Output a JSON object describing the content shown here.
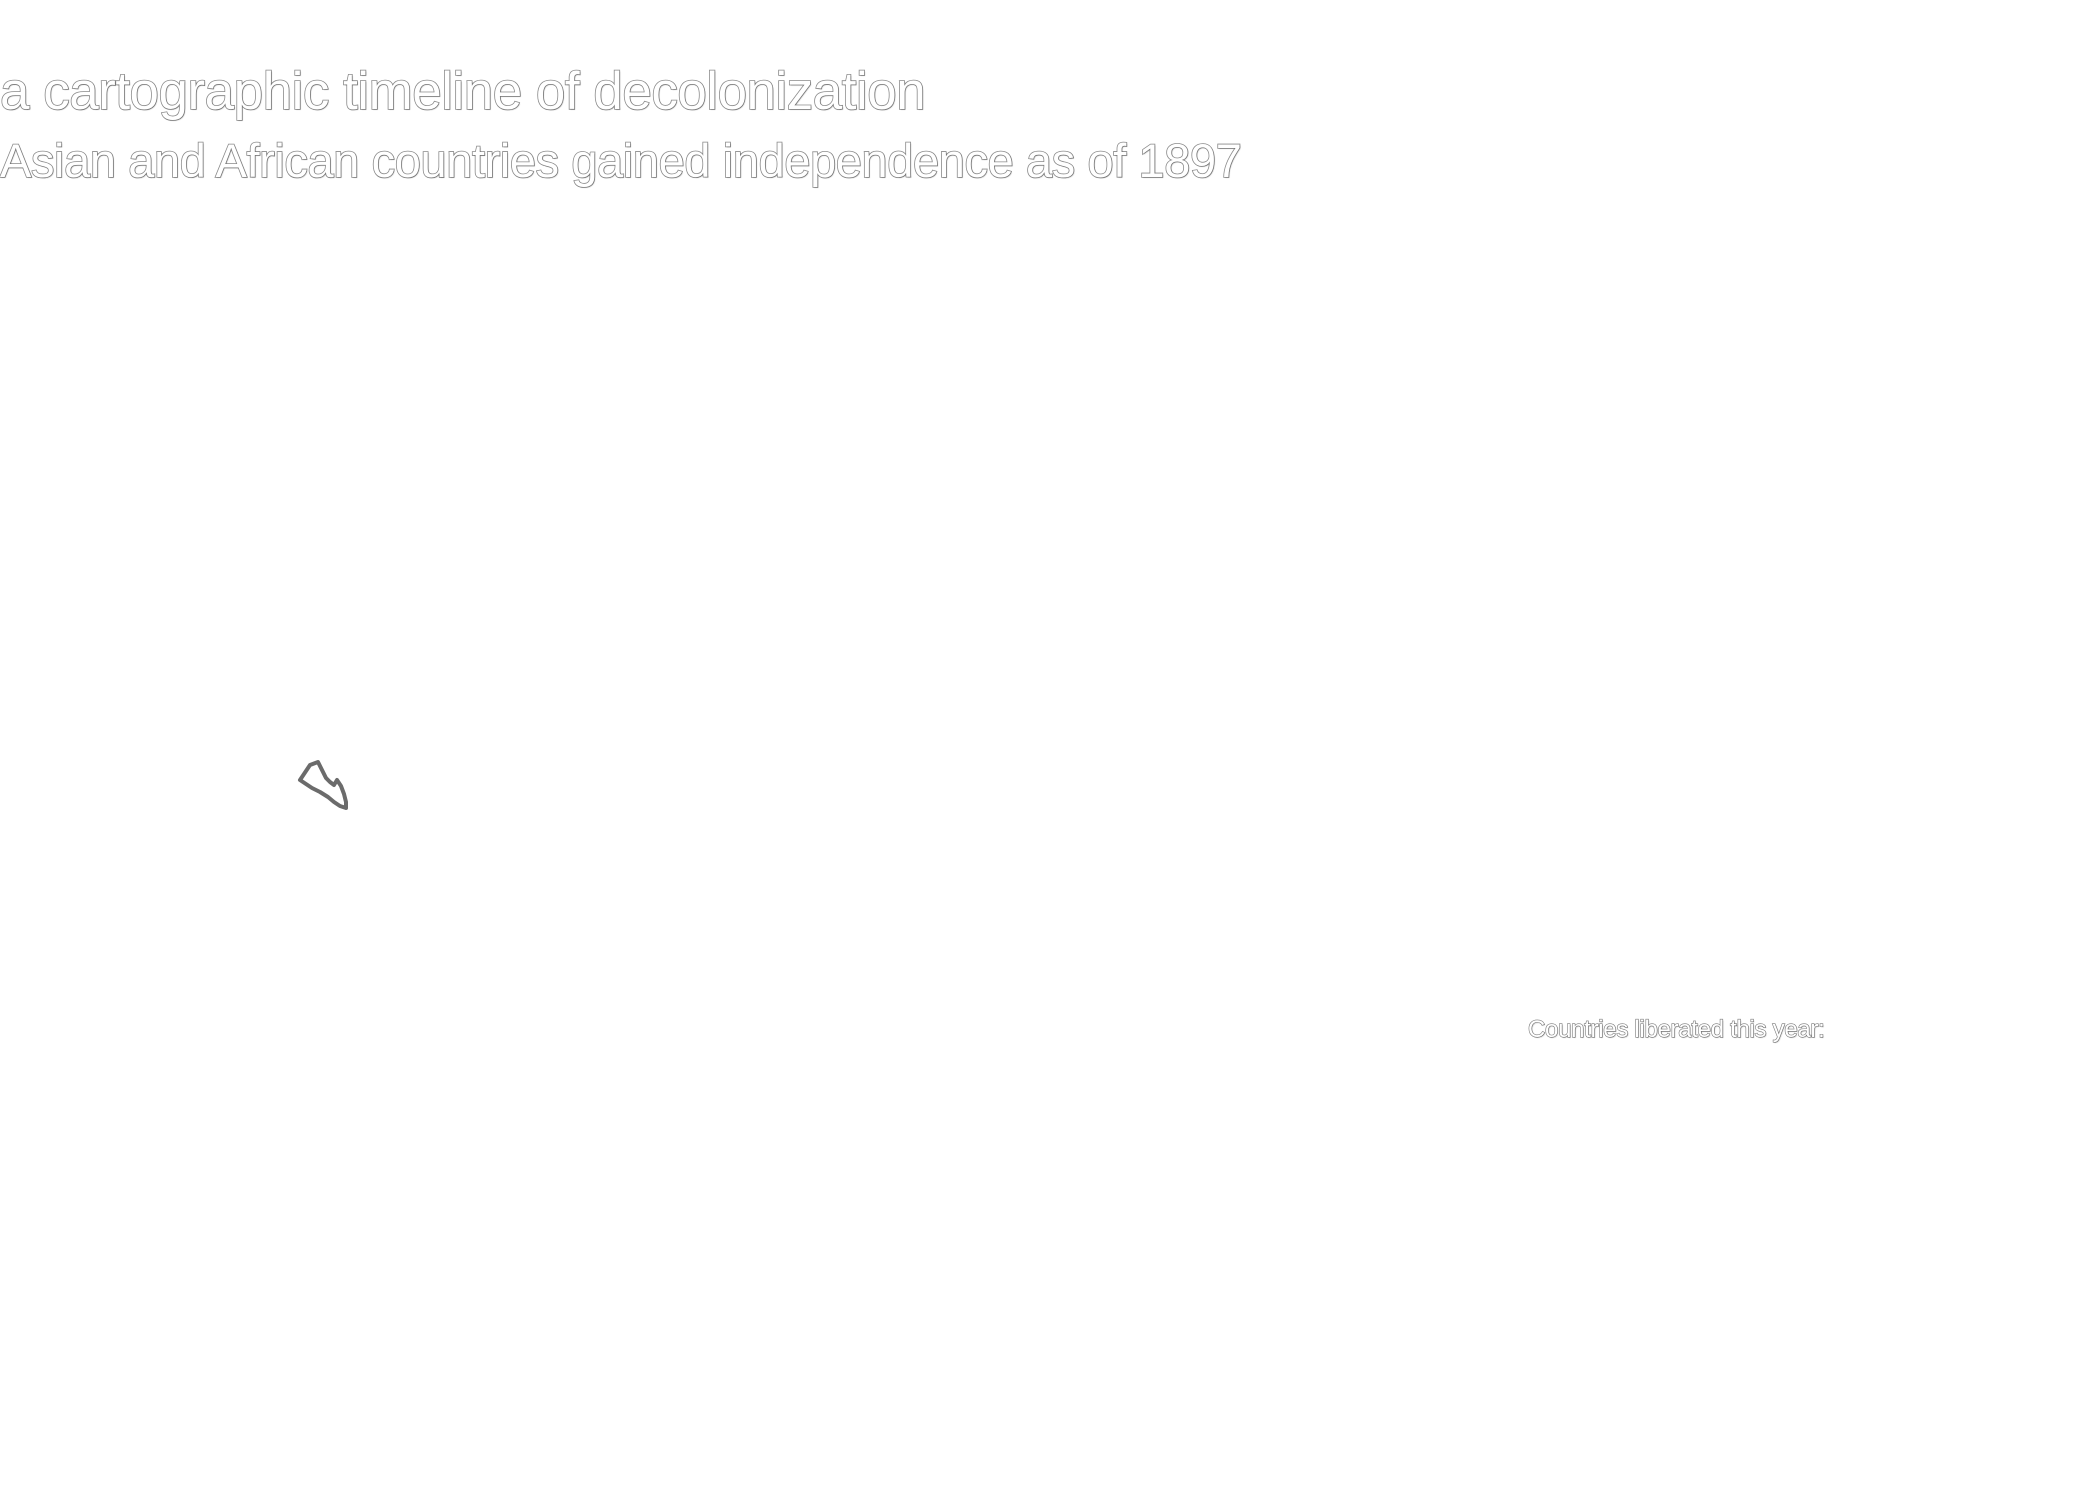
{
  "header": {
    "title": "a cartographic timeline of decolonization",
    "subtitle": "Asian and African countries gained independence as of 1897"
  },
  "map": {
    "highlighted_country_fill": "#ffffff",
    "highlighted_country_stroke": "#6b6b6b",
    "country_shape_icon": "country-outline-icon"
  },
  "panel": {
    "liberated_label": "Countries liberated this year:"
  }
}
